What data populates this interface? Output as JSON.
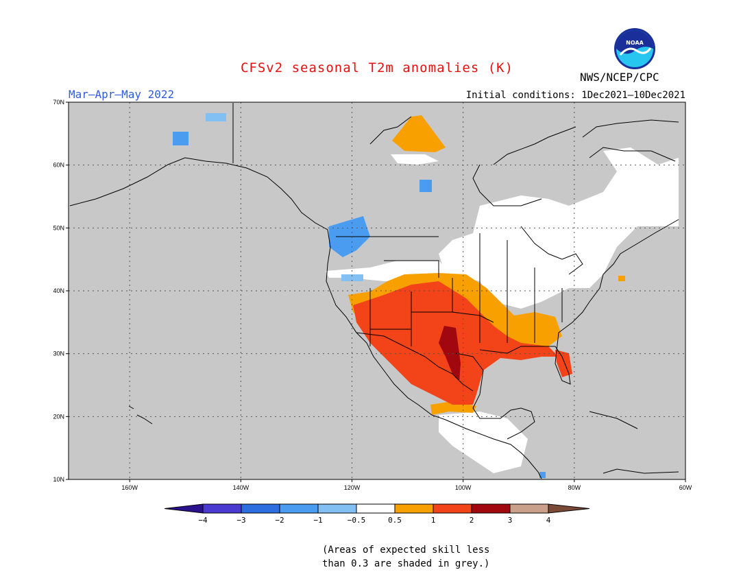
{
  "title": "CFSv2 seasonal T2m anomalies (K)",
  "season": "Mar–Apr–May 2022",
  "initial_conditions": "Initial conditions: 1Dec2021–10Dec2021",
  "agency": "NWS/NCEP/CPC",
  "logo_text": "NOAA",
  "note_line1": "(Areas of expected skill less",
  "note_line2": "than 0.3 are shaded in grey.)",
  "map": {
    "lat_range": [
      10,
      70
    ],
    "lon_range": [
      -171,
      -60
    ],
    "lat_ticks": [
      "10N",
      "20N",
      "30N",
      "40N",
      "50N",
      "60N",
      "70N"
    ],
    "lon_ticks": [
      "160W",
      "140W",
      "120W",
      "100W",
      "80W",
      "60W"
    ],
    "background_color": "#c8c8c8"
  },
  "legend": {
    "ticks": [
      "−4",
      "−3",
      "−2",
      "−1",
      "−0.5",
      "0.5",
      "1",
      "2",
      "3",
      "4"
    ],
    "colors": [
      "#2a128c",
      "#4a3ad0",
      "#2c6ee0",
      "#4a9cf0",
      "#82bff2",
      "#ffffff",
      "#f7a000",
      "#f34318",
      "#a0070f",
      "#c9a08a",
      "#7a4a36"
    ]
  }
}
